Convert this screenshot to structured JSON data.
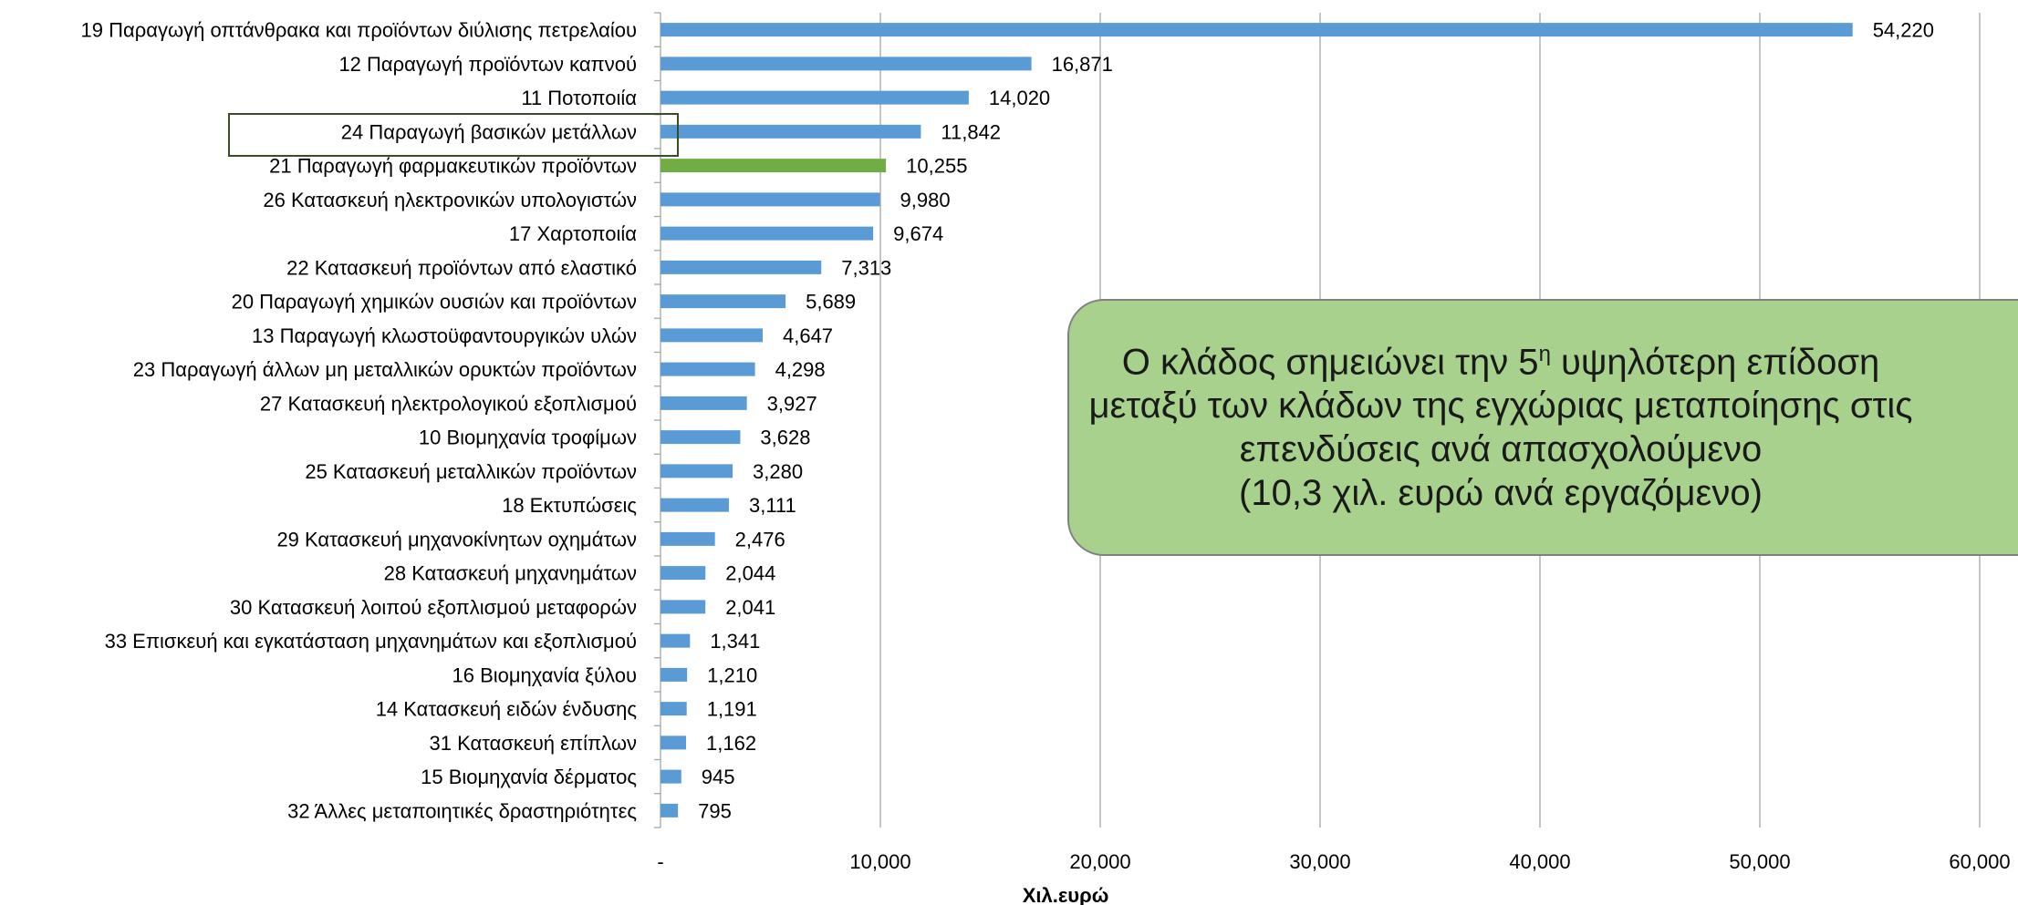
{
  "chart_data": {
    "type": "bar",
    "orientation": "horizontal",
    "categories": [
      "19 Παραγωγή οπτάνθρακα και προϊόντων διύλισης πετρελαίου",
      "12 Παραγωγή προϊόντων καπνού",
      "11 Ποτοποιία",
      "24 Παραγωγή βασικών μετάλλων",
      "21 Παραγωγή φαρμακευτικών προϊόντων",
      "26 Κατασκευή ηλεκτρονικών υπολογιστών",
      "17 Χαρτοποιία",
      "22 Κατασκευή προϊόντων από ελαστικό",
      "20 Παραγωγή χημικών ουσιών και προϊόντων",
      "13 Παραγωγή κλωστοϋφαντουργικών υλών",
      "23 Παραγωγή άλλων μη μεταλλικών ορυκτών προϊόντων",
      "27 Κατασκευή ηλεκτρολογικού εξοπλισμού",
      "10 Βιομηχανία τροφίμων",
      "25 Κατασκευή μεταλλικών προϊόντων",
      "18 Εκτυπώσεις",
      "29 Κατασκευή μηχανοκίνητων οχημάτων",
      "28 Κατασκευή μηχανημάτων",
      "30 Κατασκευή λοιπού εξοπλισμού μεταφορών",
      "33 Επισκευή και εγκατάσταση μηχανημάτων και εξοπλισμού",
      "16 Βιομηχανία ξύλου",
      "14 Κατασκευή ειδών ένδυσης",
      "31 Κατασκευή επίπλων",
      "15 Βιομηχανία δέρματος",
      "32 Άλλες μεταποιητικές δραστηριότητες"
    ],
    "values": [
      54220,
      16871,
      14020,
      11842,
      10255,
      9980,
      9674,
      7313,
      5689,
      4647,
      4298,
      3927,
      3628,
      3280,
      3111,
      2476,
      2044,
      2041,
      1341,
      1210,
      1191,
      1162,
      945,
      795
    ],
    "value_labels": [
      "54,220",
      "16,871",
      "14,020",
      "11,842",
      "10,255",
      "9,980",
      "9,674",
      "7,313",
      "5,689",
      "4,647",
      "4,298",
      "3,927",
      "3,628",
      "3,280",
      "3,111",
      "2,476",
      "2,044",
      "2,041",
      "1,341",
      "1,210",
      "1,191",
      "1,162",
      "945",
      "795"
    ],
    "highlight_index": 4,
    "xlim": [
      0,
      60000
    ],
    "x_ticks": [
      0,
      10000,
      20000,
      30000,
      40000,
      50000,
      60000
    ],
    "x_tick_labels": [
      "-",
      "10,000",
      "20,000",
      "30,000",
      "40,000",
      "50,000",
      "60,000"
    ],
    "xlabel": "Χιλ.ευρώ",
    "ylabel": "",
    "title": "",
    "grid": "vertical",
    "colors": {
      "bar": "#5b9bd5",
      "highlight": "#70ad47",
      "grid": "#a6a6a6",
      "axis": "#a6a6a6"
    }
  },
  "callout": {
    "line1_before": "Ο κλάδος σημειώνει την 5",
    "line1_sup": "η",
    "line1_after": "  υψηλότερη επίδοση",
    "line2": "μεταξύ των κλάδων της εγχώριας μεταποίησης στις",
    "line3": "επενδύσεις ανά απασχολούμενο",
    "line4": "(10,3 χιλ. ευρώ ανά εργαζόμενο)",
    "background": "#a9d18e"
  }
}
